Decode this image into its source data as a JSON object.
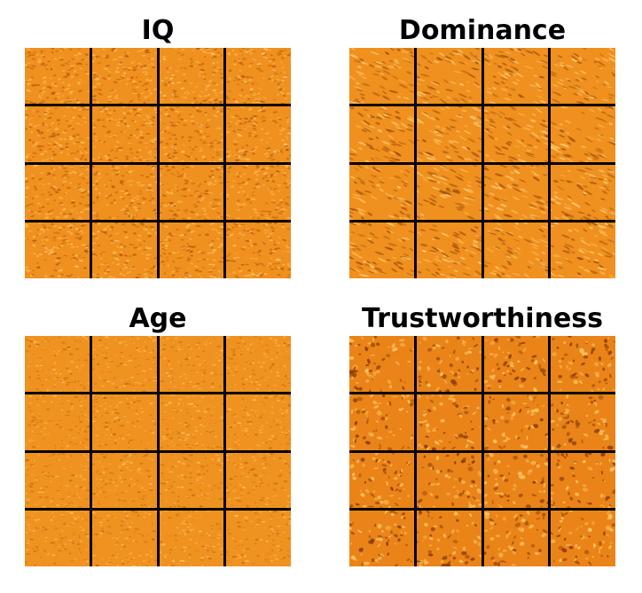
{
  "panels": [
    {
      "title": "IQ",
      "rows": 4,
      "cols": 4,
      "base_color": "#f0901e",
      "dark_color": "#a8500a",
      "light_color": "#ffcf70",
      "pattern": "fine-ripple"
    },
    {
      "title": "Dominance",
      "rows": 4,
      "cols": 4,
      "base_color": "#f0901e",
      "dark_color": "#9a4a08",
      "light_color": "#ffd27a",
      "pattern": "diagonal-streak"
    },
    {
      "title": "Age",
      "rows": 4,
      "cols": 4,
      "base_color": "#f0921f",
      "dark_color": "#a85a10",
      "light_color": "#ffd585",
      "pattern": "faint-speckle"
    },
    {
      "title": "Trustworthiness",
      "rows": 4,
      "cols": 4,
      "base_color": "#ea8418",
      "dark_color": "#8a3a04",
      "light_color": "#ffc865",
      "pattern": "blotch"
    }
  ]
}
